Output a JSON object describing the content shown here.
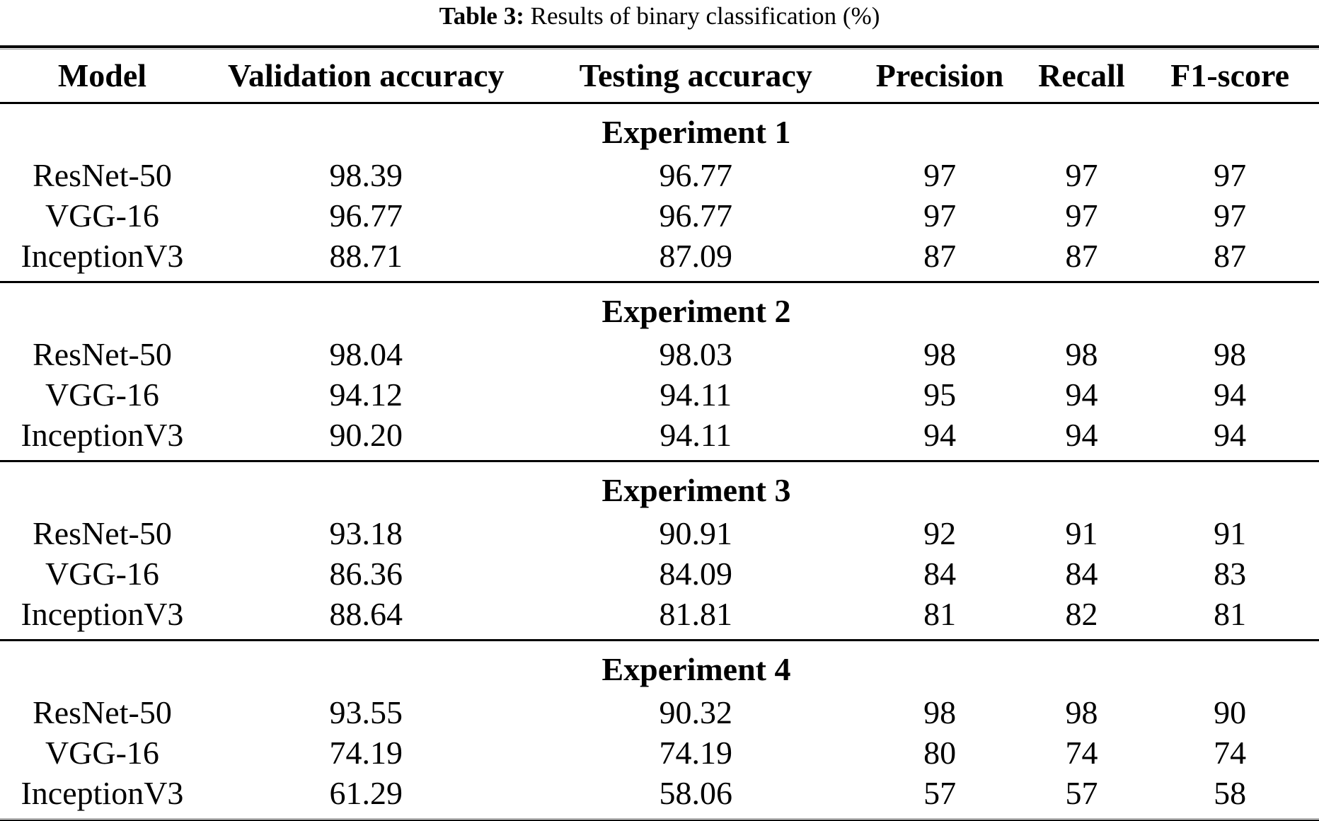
{
  "caption": {
    "label": "Table 3:",
    "text": " Results of binary classification (%)"
  },
  "table": {
    "columns": [
      "Model",
      "Validation accuracy",
      "Testing accuracy",
      "Precision",
      "Recall",
      "F1-score"
    ],
    "sections": [
      {
        "title": "Experiment 1",
        "rows": [
          {
            "model": "ResNet-50",
            "values": [
              "98.39",
              "96.77",
              "97",
              "97",
              "97"
            ]
          },
          {
            "model": "VGG-16",
            "values": [
              "96.77",
              "96.77",
              "97",
              "97",
              "97"
            ]
          },
          {
            "model": "InceptionV3",
            "values": [
              "88.71",
              "87.09",
              "87",
              "87",
              "87"
            ]
          }
        ]
      },
      {
        "title": "Experiment 2",
        "rows": [
          {
            "model": "ResNet-50",
            "values": [
              "98.04",
              "98.03",
              "98",
              "98",
              "98"
            ]
          },
          {
            "model": "VGG-16",
            "values": [
              "94.12",
              "94.11",
              "95",
              "94",
              "94"
            ]
          },
          {
            "model": "InceptionV3",
            "values": [
              "90.20",
              "94.11",
              "94",
              "94",
              "94"
            ]
          }
        ]
      },
      {
        "title": "Experiment 3",
        "rows": [
          {
            "model": "ResNet-50",
            "values": [
              "93.18",
              "90.91",
              "92",
              "91",
              "91"
            ]
          },
          {
            "model": "VGG-16",
            "values": [
              "86.36",
              "84.09",
              "84",
              "84",
              "83"
            ]
          },
          {
            "model": "InceptionV3",
            "values": [
              "88.64",
              "81.81",
              "81",
              "82",
              "81"
            ]
          }
        ]
      },
      {
        "title": "Experiment 4",
        "rows": [
          {
            "model": "ResNet-50",
            "values": [
              "93.55",
              "90.32",
              "98",
              "98",
              "90"
            ]
          },
          {
            "model": "VGG-16",
            "values": [
              "74.19",
              "74.19",
              "80",
              "74",
              "74"
            ]
          },
          {
            "model": "InceptionV3",
            "values": [
              "61.29",
              "58.06",
              "57",
              "57",
              "58"
            ]
          }
        ]
      }
    ]
  }
}
